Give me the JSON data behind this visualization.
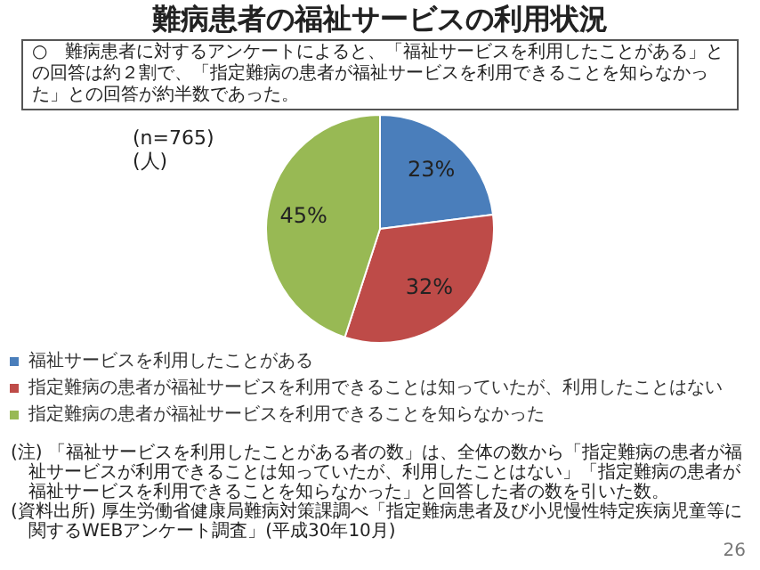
{
  "chart_data": {
    "type": "pie",
    "title": "難病患者の福祉サービスの利用状況",
    "subtitle": "○　難病患者に対するアンケートによると、「福祉サービスを利用したことがある」との回答は約２割で、「指定難病の患者が福祉サービスを利用できることを知らなかった」との回答が約半数であった。",
    "categories": [
      "福祉サービスを利用したことがある",
      "指定難病の患者が福祉サービスを利用できることは知っていたが、利用したことはない",
      "指定難病の患者が福祉サービスを利用できることを知らなかった"
    ],
    "values": [
      23,
      32,
      45
    ],
    "colors": [
      "#4a7ebb",
      "#be4b48",
      "#98b954"
    ],
    "value_labels": [
      "23%",
      "32%",
      "45%"
    ],
    "legend": "bottom",
    "annotations": [
      "(n=765)",
      "(人)",
      "(注) 「福祉サービスを利用したことがある者の数」は、全体の数から「指定難病の患者が福祉サービスが利用できることは知っていたが、利用したことはない」「指定難病の患者が福祉サービスを利用できることを知らなかった」と回答した者の数を引いた数。",
      "(資料出所) 厚生労働省健康局難病対策課調べ「指定難病患者及び小児慢性特定疾病児童等に関するWEBアンケート調査」(平成30年10月)",
      "26"
    ]
  }
}
